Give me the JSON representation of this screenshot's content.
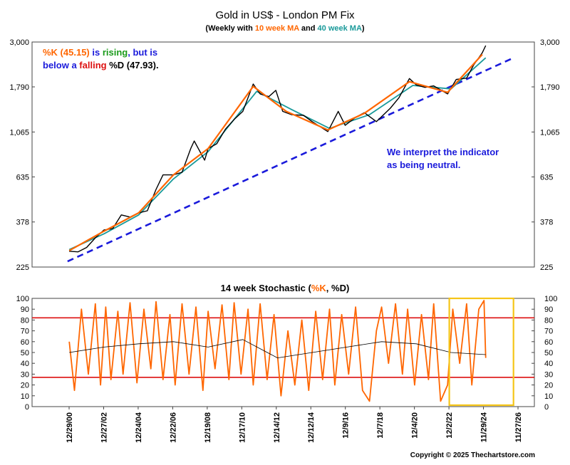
{
  "title": "Gold in US$ - London PM Fix",
  "subtitle": {
    "prefix": "(Weekly with ",
    "ma10": "10 week MA",
    "mid": " and ",
    "ma40": "40 week MA",
    "suffix": ")"
  },
  "colors": {
    "price": "#000000",
    "ma10": "#ff6600",
    "ma40": "#1a9a9a",
    "trend": "#1a1adb",
    "hline": "#dd1111",
    "stoch": "#ff6600",
    "highlight": "#f5c518",
    "neutral_text": "#1a1adb",
    "rising": "#1a9a1a",
    "falling": "#dd1111"
  },
  "annotation_top": {
    "k_part": "%K (45.15)",
    "is": " is ",
    "rising": "rising",
    "but": ", but is",
    "below_a": "below a ",
    "falling": "falling",
    "d_part": " %D (47.93)."
  },
  "annotation_interpret": {
    "line1": "We interpret the indicator",
    "line2": "as being neutral."
  },
  "lower_title": {
    "prefix": "14 week Stochastic (",
    "k": "%K",
    "mid": ", ",
    "d": "%D",
    "suffix": ")"
  },
  "copyright": "Copyright © 2025 Thechartstore.com",
  "chart_data": [
    {
      "type": "line",
      "title": "Gold in US$ - London PM Fix",
      "y_scale": "log",
      "ylim": [
        225,
        3000
      ],
      "y_ticks": [
        "3,000",
        "1,790",
        "1,065",
        "635",
        "378",
        "225"
      ],
      "y_tick_values": [
        3000,
        1790,
        1065,
        635,
        378,
        225
      ],
      "x_ticks": [
        "12/29/00",
        "12/27/02",
        "12/24/04",
        "12/22/06",
        "12/19/08",
        "12/17/10",
        "12/14/12",
        "12/12/14",
        "12/9/16",
        "12/7/18",
        "12/4/20",
        "12/2/22",
        "11/29/24",
        "11/27/26"
      ],
      "series": [
        {
          "name": "Gold",
          "x": [
            2000.99,
            2001.5,
            2002.0,
            2002.5,
            2003.0,
            2003.5,
            2004.0,
            2004.5,
            2005.0,
            2005.5,
            2006.0,
            2006.4,
            2007.0,
            2007.5,
            2008.0,
            2008.2,
            2008.8,
            2009.0,
            2009.5,
            2010.0,
            2010.5,
            2011.0,
            2011.6,
            2012.0,
            2012.5,
            2012.9,
            2013.3,
            2013.8,
            2014.5,
            2015.0,
            2015.9,
            2016.5,
            2016.9,
            2017.5,
            2018.0,
            2018.7,
            2019.5,
            2020.0,
            2020.6,
            2021.0,
            2021.5,
            2022.0,
            2022.8,
            2023.3,
            2023.9,
            2024.3,
            2024.8,
            2025.0
          ],
          "values": [
            270,
            268,
            282,
            315,
            345,
            350,
            410,
            400,
            420,
            430,
            550,
            650,
            650,
            670,
            880,
            960,
            770,
            880,
            930,
            1100,
            1230,
            1350,
            1850,
            1650,
            1600,
            1720,
            1350,
            1300,
            1290,
            1200,
            1070,
            1350,
            1150,
            1260,
            1330,
            1200,
            1400,
            1580,
            1970,
            1830,
            1780,
            1810,
            1650,
            1950,
            1980,
            2300,
            2650,
            2880
          ]
        },
        {
          "name": "10 week MA",
          "x": [
            2001.0,
            2003.0,
            2005.0,
            2007.0,
            2009.0,
            2011.6,
            2013.5,
            2015.9,
            2018.0,
            2020.6,
            2022.8,
            2024.8
          ],
          "values": [
            272,
            340,
            420,
            650,
            880,
            1800,
            1350,
            1090,
            1320,
            1900,
            1680,
            2600
          ]
        },
        {
          "name": "40 week MA",
          "x": [
            2001.0,
            2003.0,
            2005.0,
            2007.0,
            2009.0,
            2011.8,
            2013.8,
            2016.0,
            2018.3,
            2020.8,
            2023.0,
            2025.0
          ],
          "values": [
            275,
            330,
            410,
            620,
            850,
            1700,
            1380,
            1110,
            1300,
            1820,
            1750,
            2500
          ]
        },
        {
          "name": "Trendline",
          "x": [
            2000.9,
            2026.6
          ],
          "values": [
            240,
            2500
          ]
        }
      ]
    },
    {
      "type": "line",
      "title": "14 week Stochastic (%K, %D)",
      "ylim": [
        0,
        100
      ],
      "y_ticks": [
        0,
        10,
        20,
        30,
        40,
        50,
        60,
        70,
        80,
        90,
        100
      ],
      "hlines": [
        82,
        27
      ],
      "highlight_x": [
        2022.9,
        2026.6
      ],
      "series": [
        {
          "name": "%K",
          "x": [
            2001.0,
            2001.3,
            2001.7,
            2002.1,
            2002.5,
            2002.8,
            2003.1,
            2003.4,
            2003.8,
            2004.1,
            2004.5,
            2004.9,
            2005.3,
            2005.7,
            2006.0,
            2006.4,
            2006.8,
            2007.1,
            2007.5,
            2007.9,
            2008.3,
            2008.7,
            2009.0,
            2009.4,
            2009.8,
            2010.2,
            2010.5,
            2010.9,
            2011.3,
            2011.6,
            2012.0,
            2012.4,
            2012.8,
            2013.2,
            2013.6,
            2014.0,
            2014.4,
            2014.8,
            2015.2,
            2015.6,
            2016.0,
            2016.3,
            2016.7,
            2017.1,
            2017.5,
            2017.9,
            2018.3,
            2018.7,
            2019.0,
            2019.4,
            2019.8,
            2020.2,
            2020.5,
            2020.9,
            2021.3,
            2021.7,
            2022.0,
            2022.4,
            2022.8,
            2023.1,
            2023.5,
            2023.9,
            2024.2,
            2024.6,
            2024.9,
            2025.0
          ],
          "values": [
            60,
            15,
            90,
            30,
            95,
            20,
            92,
            25,
            88,
            30,
            96,
            22,
            90,
            35,
            97,
            25,
            85,
            20,
            95,
            30,
            92,
            15,
            88,
            35,
            94,
            25,
            96,
            30,
            90,
            20,
            95,
            25,
            85,
            10,
            70,
            20,
            80,
            15,
            88,
            25,
            90,
            20,
            85,
            30,
            92,
            15,
            5,
            70,
            92,
            40,
            95,
            30,
            90,
            20,
            85,
            25,
            95,
            5,
            20,
            90,
            40,
            95,
            20,
            90,
            98,
            45
          ]
        },
        {
          "name": "%D",
          "x": [
            2001.0,
            2003.0,
            2005.0,
            2007.0,
            2009.0,
            2011.0,
            2013.0,
            2015.0,
            2017.0,
            2019.0,
            2021.0,
            2023.0,
            2025.0
          ],
          "values": [
            50,
            55,
            58,
            60,
            55,
            62,
            45,
            50,
            55,
            60,
            58,
            50,
            48
          ]
        }
      ]
    }
  ]
}
